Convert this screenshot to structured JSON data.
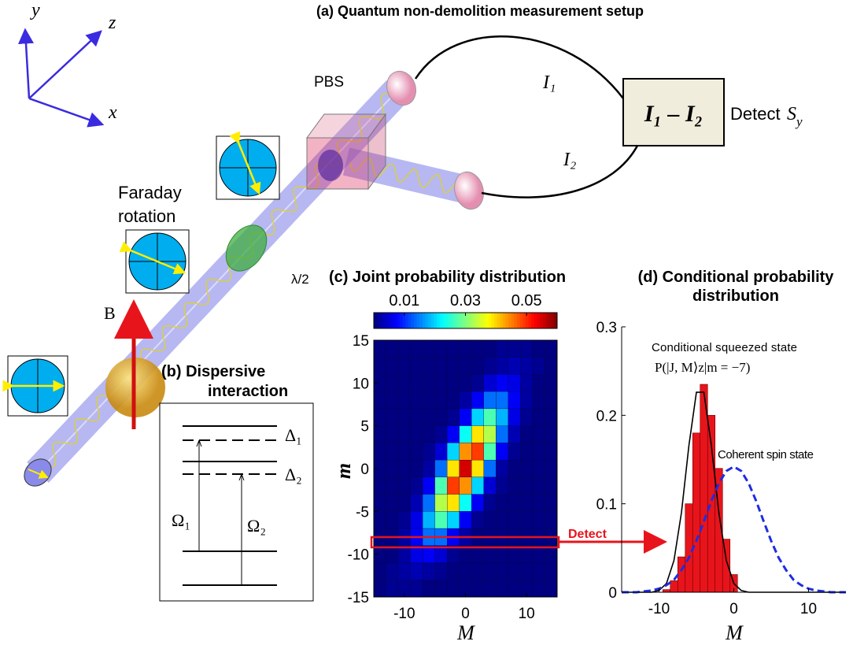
{
  "setup": {
    "title": "(a)  Quantum non-demolition measurement setup",
    "axes": {
      "x": "x",
      "y": "y",
      "z": "z"
    },
    "pbs": "PBS",
    "i1": "I₁",
    "i2": "I₂",
    "difference": "I₁ – I₂",
    "detect": "Detect",
    "s_y": {
      "base": "S",
      "sub": "y"
    },
    "faraday": [
      "Faraday",
      "rotation"
    ],
    "half_wave": "λ/2",
    "field": "B"
  },
  "dispersive": {
    "title": [
      "(b)  Dispersive",
      "interaction"
    ],
    "detunings": [
      "Δ₁",
      "Δ₂"
    ],
    "rabi": [
      "Ω₁",
      "Ω₂"
    ]
  },
  "chart_data": [
    {
      "type": "heatmap",
      "title": "(c)  Joint probability distribution",
      "xlabel": "M",
      "ylabel": "m",
      "x": [
        -14,
        -12,
        -10,
        -8,
        -6,
        -4,
        -2,
        0,
        2,
        4,
        6,
        8,
        10,
        12,
        14
      ],
      "y": [
        14,
        12,
        10,
        8,
        6,
        4,
        2,
        0,
        -2,
        -4,
        -6,
        -8,
        -10,
        -12,
        -14
      ],
      "z": [
        [
          0,
          0,
          0,
          0,
          0,
          0,
          0,
          0,
          0,
          0,
          0.001,
          0.001,
          0.001,
          0,
          0
        ],
        [
          0,
          0,
          0,
          0,
          0,
          0,
          0,
          0,
          0,
          0.001,
          0.002,
          0.003,
          0.002,
          0.001,
          0
        ],
        [
          0,
          0,
          0,
          0,
          0,
          0,
          0,
          0,
          0.001,
          0.005,
          0.007,
          0.006,
          0.002,
          0,
          0
        ],
        [
          0,
          0,
          0,
          0,
          0,
          0,
          0,
          0.002,
          0.007,
          0.014,
          0.014,
          0.007,
          0.002,
          0,
          0
        ],
        [
          0,
          0,
          0,
          0,
          0,
          0,
          0.001,
          0.007,
          0.02,
          0.027,
          0.018,
          0.006,
          0.001,
          0,
          0
        ],
        [
          0,
          0,
          0,
          0,
          0,
          0.001,
          0.007,
          0.023,
          0.039,
          0.033,
          0.014,
          0.003,
          0,
          0,
          0
        ],
        [
          0,
          0,
          0,
          0,
          0.001,
          0.005,
          0.02,
          0.044,
          0.049,
          0.027,
          0.007,
          0.001,
          0,
          0,
          0
        ],
        [
          0,
          0,
          0,
          0,
          0.002,
          0.014,
          0.039,
          0.055,
          0.039,
          0.014,
          0.002,
          0,
          0,
          0,
          0
        ],
        [
          0,
          0,
          0,
          0.001,
          0.007,
          0.027,
          0.049,
          0.044,
          0.02,
          0.005,
          0.001,
          0,
          0,
          0,
          0
        ],
        [
          0,
          0,
          0,
          0.003,
          0.014,
          0.033,
          0.039,
          0.023,
          0.007,
          0.001,
          0,
          0,
          0,
          0,
          0
        ],
        [
          0,
          0,
          0.001,
          0.006,
          0.018,
          0.027,
          0.02,
          0.007,
          0.001,
          0,
          0,
          0,
          0,
          0,
          0
        ],
        [
          0,
          0,
          0.002,
          0.007,
          0.014,
          0.014,
          0.007,
          0.002,
          0,
          0,
          0,
          0,
          0,
          0,
          0
        ],
        [
          0,
          0,
          0.002,
          0.006,
          0.007,
          0.005,
          0.001,
          0,
          0,
          0,
          0,
          0,
          0,
          0,
          0
        ],
        [
          0,
          0.001,
          0.002,
          0.003,
          0.002,
          0.001,
          0,
          0,
          0,
          0,
          0,
          0,
          0,
          0,
          0
        ],
        [
          0,
          0.001,
          0.001,
          0.001,
          0,
          0,
          0,
          0,
          0,
          0,
          0,
          0,
          0,
          0,
          0
        ]
      ],
      "clim": [
        0,
        0.06
      ],
      "cticks": [
        0.01,
        0.03,
        0.05
      ],
      "xlim": [
        -15,
        15
      ],
      "xticks": [
        -10,
        0,
        10
      ],
      "ylim": [
        -15,
        15
      ],
      "yticks": [
        -15,
        -10,
        -5,
        0,
        5,
        10,
        15
      ],
      "annotation": "Detect"
    },
    {
      "type": "histogram",
      "title": [
        "(d)  Conditional probability",
        "distribution"
      ],
      "xlabel": "M",
      "bins": [
        -9.5,
        -8.5,
        -7.5,
        -6.5,
        -5.5,
        -4.5,
        -3.5,
        -2.5,
        -1.5,
        -0.5,
        0.5
      ],
      "counts": [
        0.003,
        0.013,
        0.04,
        0.1,
        0.18,
        0.235,
        0.2,
        0.14,
        0.06,
        0.02
      ],
      "color": "#e8141b",
      "curve_x": [
        -15,
        -14,
        -13,
        -12,
        -11,
        -10,
        -9,
        -8,
        -7,
        -6,
        -5,
        -4,
        -3,
        -2,
        -1,
        0,
        1,
        2,
        3,
        4,
        5,
        6,
        7,
        8,
        9,
        10,
        11,
        12,
        13,
        14,
        15
      ],
      "curves": [
        {
          "name": "Conditional squeezed state",
          "color": "#000000",
          "dashed": false,
          "values": [
            0,
            0,
            0,
            0,
            0,
            0.002,
            0.01,
            0.036,
            0.09,
            0.166,
            0.226,
            0.226,
            0.166,
            0.09,
            0.036,
            0.01,
            0.002,
            0,
            0,
            0,
            0,
            0,
            0,
            0,
            0,
            0,
            0,
            0,
            0,
            0,
            0
          ]
        },
        {
          "name": "Coherent spin state",
          "color": "#1f2de0",
          "dashed": true,
          "values": [
            0,
            0,
            0,
            0.001,
            0.002,
            0.004,
            0.008,
            0.014,
            0.025,
            0.039,
            0.058,
            0.08,
            0.103,
            0.123,
            0.137,
            0.142,
            0.137,
            0.123,
            0.103,
            0.08,
            0.058,
            0.039,
            0.025,
            0.014,
            0.008,
            0.004,
            0.002,
            0.001,
            0,
            0,
            0
          ]
        }
      ],
      "formula": "P(|J, M⟩z|m = −7)",
      "xlim": [
        -15,
        15
      ],
      "xticks": [
        -10,
        0,
        10
      ],
      "ylim": [
        0,
        0.3
      ],
      "yticks": [
        0,
        0.1,
        0.2,
        0.3
      ]
    }
  ]
}
